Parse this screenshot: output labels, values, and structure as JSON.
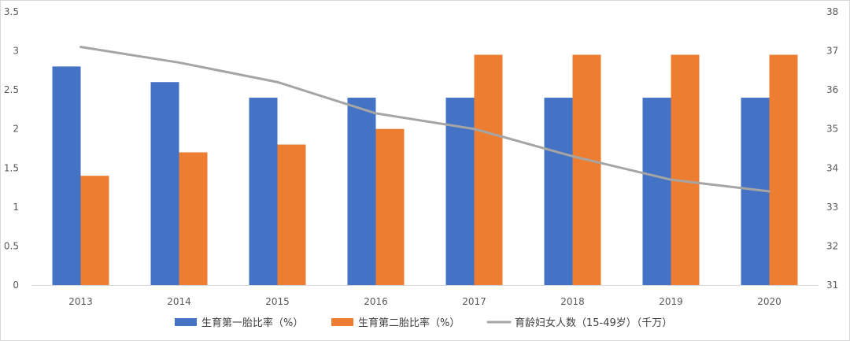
{
  "chart_data": {
    "type": "bar",
    "categories": [
      "2013",
      "2014",
      "2015",
      "2016",
      "2017",
      "2018",
      "2019",
      "2020"
    ],
    "series": [
      {
        "name": "生育第一胎比率（%）",
        "type": "bar",
        "axis": "left",
        "color": "#4472C4",
        "values": [
          2.8,
          2.6,
          2.4,
          2.4,
          2.4,
          2.4,
          2.4,
          2.4
        ]
      },
      {
        "name": "生育第二胎比率（%）",
        "type": "bar",
        "axis": "left",
        "color": "#ED7D31",
        "values": [
          1.4,
          1.7,
          1.8,
          2.0,
          2.95,
          2.95,
          2.95,
          2.95
        ]
      },
      {
        "name": "育龄妇女人数（15-49岁）（千万）",
        "type": "line",
        "axis": "right",
        "color": "#A5A5A5",
        "values": [
          37.1,
          36.7,
          36.2,
          35.4,
          35.0,
          34.3,
          33.7,
          33.4
        ]
      }
    ],
    "y_left": {
      "min": 0,
      "max": 3.5,
      "ticks": [
        "0",
        "0.5",
        "1",
        "1.5",
        "2",
        "2.5",
        "3",
        "3.5"
      ]
    },
    "y_right": {
      "min": 31,
      "max": 38,
      "ticks": [
        "31",
        "32",
        "33",
        "34",
        "35",
        "36",
        "37",
        "38"
      ]
    },
    "legend_position": "bottom",
    "grid": false
  }
}
